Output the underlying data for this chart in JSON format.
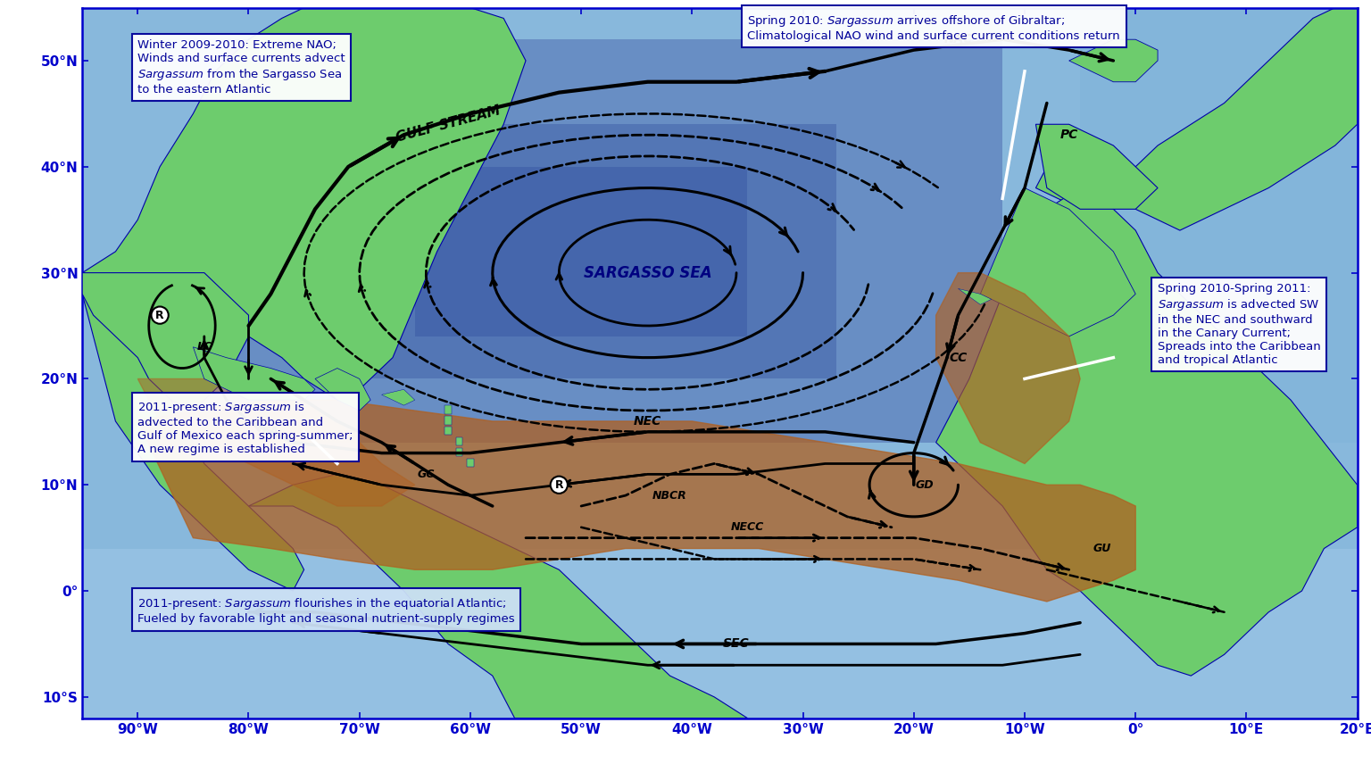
{
  "lon_min": -95,
  "lon_max": 20,
  "lat_min": -12,
  "lat_max": 55,
  "land_color": "#6dcc6d",
  "land_edge": "#0000aa",
  "ocean_base": "#8ab8e0",
  "ocean_deep": "#4a6fb8",
  "ocean_sargasso": "#5a80c8",
  "sargassum_color": "#b06020",
  "tick_color": "#0000cc",
  "ann_color": "#000099",
  "xticks": [
    -90,
    -80,
    -70,
    -60,
    -50,
    -40,
    -30,
    -20,
    -10,
    0,
    10,
    20
  ],
  "yticks": [
    -10,
    0,
    10,
    20,
    30,
    40,
    50
  ],
  "xtick_labels": [
    "90°W",
    "80°W",
    "70°W",
    "60°W",
    "50°W",
    "40°W",
    "30°W",
    "20°W",
    "10°W",
    "0°",
    "10°E",
    "20°E"
  ],
  "ytick_labels": [
    "10°S",
    "0°",
    "10°N",
    "20°N",
    "30°N",
    "40°N",
    "50°N"
  ]
}
